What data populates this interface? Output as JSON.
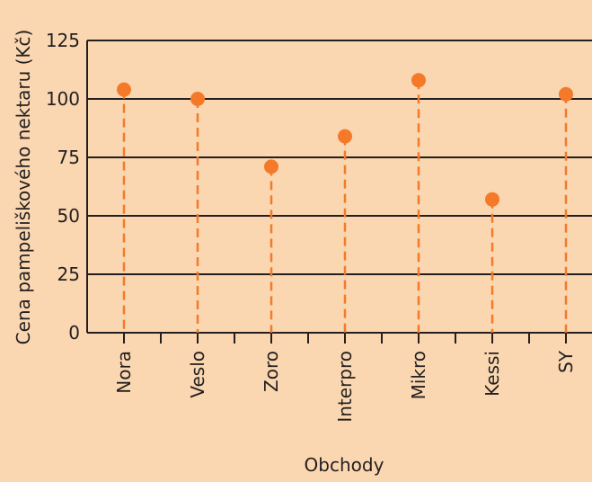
{
  "chart_data": {
    "type": "scatter",
    "title": "",
    "xlabel": "Obchody",
    "ylabel": "Cena pampeliškového nektaru (Kč)",
    "categories": [
      "Nora",
      "Veslo",
      "Zoro",
      "Interpro",
      "Mikro",
      "Kessi",
      "SY"
    ],
    "values": [
      104,
      100,
      71,
      84,
      108,
      57,
      102
    ],
    "ylim": [
      0,
      125
    ],
    "yticks": [
      0,
      25,
      50,
      75,
      100,
      125
    ],
    "grid": "horizontal",
    "legend": "none",
    "point_style": "lollipop"
  },
  "colors": {
    "background": "#fad7b0",
    "marker": "#f47a2a",
    "grid": "#231f20",
    "text": "#231f20"
  }
}
